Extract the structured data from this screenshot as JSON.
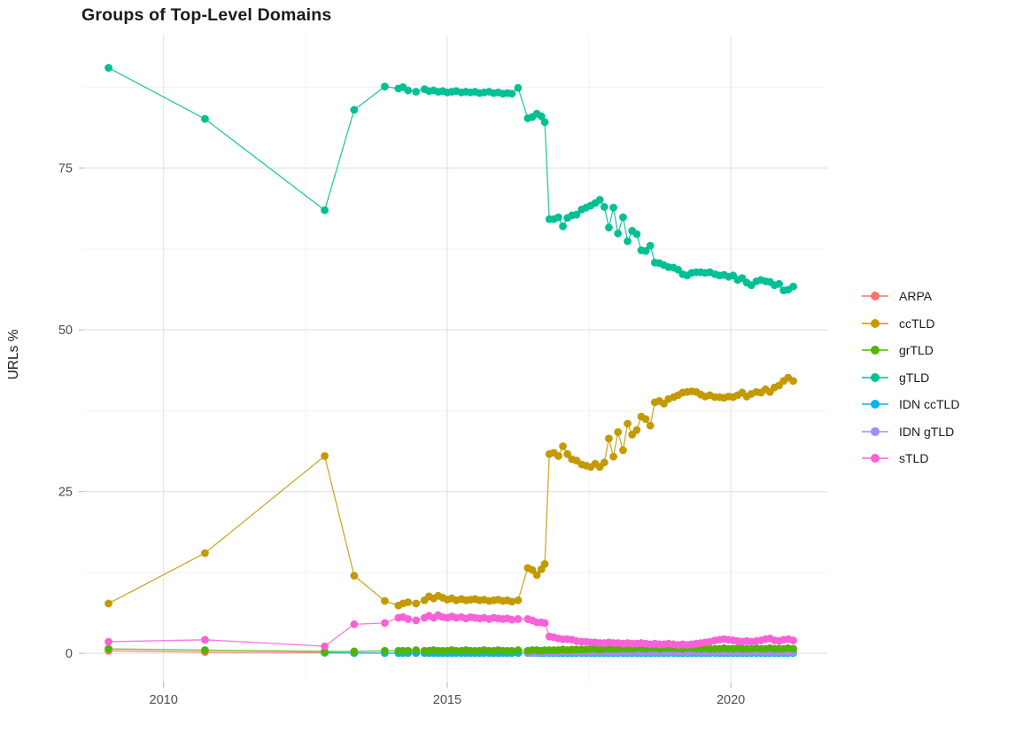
{
  "chart_data": {
    "type": "line",
    "marker": "point",
    "title": "Groups of Top-Level Domains",
    "xlabel": "",
    "ylabel": "URLs %",
    "grid": "on",
    "legend_position": "right",
    "x_axis": {
      "range": [
        2008.6,
        2021.7
      ],
      "ticks": [
        2010,
        2015,
        2020
      ],
      "tick_labels": [
        "2010",
        "2015",
        "2020"
      ],
      "minor_ticks": [
        2012.5,
        2017.5
      ]
    },
    "y_axis": {
      "range": [
        -4.5,
        95.5
      ],
      "ticks": [
        0,
        25,
        50,
        75
      ],
      "tick_labels": [
        "0",
        "25",
        "50",
        "75"
      ],
      "minor_ticks": [
        12.5,
        37.5,
        62.5,
        87.5
      ]
    },
    "x": [
      2009.03,
      2010.73,
      2012.84,
      2013.36,
      2013.9,
      2014.14,
      2014.22,
      2014.31,
      2014.45,
      2014.6,
      2014.68,
      2014.76,
      2014.84,
      2014.92,
      2015.0,
      2015.08,
      2015.16,
      2015.25,
      2015.33,
      2015.41,
      2015.49,
      2015.57,
      2015.65,
      2015.74,
      2015.82,
      2015.9,
      2015.98,
      2016.06,
      2016.14,
      2016.25,
      2016.42,
      2016.5,
      2016.58,
      2016.66,
      2016.72,
      2016.8,
      2016.88,
      2016.96,
      2017.04,
      2017.12,
      2017.2,
      2017.28,
      2017.37,
      2017.45,
      2017.53,
      2017.61,
      2017.69,
      2017.77,
      2017.85,
      2017.93,
      2018.01,
      2018.1,
      2018.18,
      2018.26,
      2018.34,
      2018.42,
      2018.5,
      2018.58,
      2018.66,
      2018.74,
      2018.82,
      2018.9,
      2018.99,
      2019.07,
      2019.15,
      2019.23,
      2019.31,
      2019.39,
      2019.47,
      2019.55,
      2019.63,
      2019.72,
      2019.8,
      2019.88,
      2019.96,
      2020.04,
      2020.12,
      2020.2,
      2020.28,
      2020.36,
      2020.45,
      2020.53,
      2020.61,
      2020.69,
      2020.77,
      2020.85,
      2020.93,
      2021.01,
      2021.1
    ],
    "series": [
      {
        "name": "ARPA",
        "color": "#F8766D",
        "values": [
          0.4,
          0.2,
          0.1,
          0.05,
          0.05,
          0.05,
          0.05,
          0.05,
          0.05,
          0.05,
          0.05,
          0.05,
          0.05,
          0.05,
          0.05,
          0.05,
          0.05,
          0.05,
          0.05,
          0.05,
          0.05,
          0.05,
          0.05,
          0.05,
          0.05,
          0.05,
          0.05,
          0.05,
          0.05,
          0.05,
          0.05,
          0.05,
          0.05,
          0.05,
          0.05,
          0.05,
          0.05,
          0.05,
          0.05,
          0.05,
          0.05,
          0.05,
          0.05,
          0.05,
          0.05,
          0.05,
          0.05,
          0.05,
          0.05,
          0.05,
          0.05,
          0.05,
          0.05,
          0.05,
          0.05,
          0.05,
          0.05,
          0.05,
          0.05,
          0.05,
          0.05,
          0.05,
          0.05,
          0.05,
          0.05,
          0.05,
          0.05,
          0.05,
          0.05,
          0.05,
          0.05,
          0.05,
          0.05,
          0.05,
          0.05,
          0.05,
          0.05,
          0.05,
          0.05,
          0.05,
          0.05,
          0.05,
          0.05,
          0.05,
          0.05,
          0.05,
          0.05,
          0.05,
          0.05
        ]
      },
      {
        "name": "ccTLD",
        "color": "#C49A00",
        "values": [
          7.7,
          15.5,
          30.5,
          12.0,
          8.1,
          7.4,
          7.7,
          7.9,
          7.7,
          8.2,
          8.8,
          8.5,
          8.9,
          8.6,
          8.3,
          8.5,
          8.2,
          8.4,
          8.2,
          8.3,
          8.4,
          8.2,
          8.3,
          8.1,
          8.2,
          8.3,
          8.1,
          8.2,
          8.0,
          8.2,
          13.2,
          12.9,
          12.1,
          13.0,
          13.8,
          30.8,
          31.0,
          30.5,
          32.0,
          30.8,
          30.0,
          29.8,
          29.2,
          29.0,
          28.8,
          29.3,
          28.8,
          29.5,
          33.2,
          30.4,
          34.2,
          31.4,
          35.5,
          33.8,
          34.5,
          36.6,
          36.2,
          35.2,
          38.8,
          39.0,
          38.6,
          39.3,
          39.6,
          39.9,
          40.3,
          40.4,
          40.5,
          40.4,
          40.0,
          39.7,
          39.9,
          39.6,
          39.6,
          39.5,
          39.7,
          39.6,
          39.9,
          40.3,
          39.7,
          40.1,
          40.4,
          40.3,
          40.8,
          40.4,
          41.1,
          41.4,
          42.1,
          42.6,
          42.1
        ]
      },
      {
        "name": "grTLD",
        "color": "#53B400",
        "values": [
          0.7,
          0.5,
          0.3,
          0.3,
          0.4,
          0.4,
          0.4,
          0.4,
          0.5,
          0.4,
          0.4,
          0.5,
          0.4,
          0.4,
          0.4,
          0.5,
          0.4,
          0.4,
          0.5,
          0.4,
          0.4,
          0.4,
          0.5,
          0.4,
          0.4,
          0.5,
          0.4,
          0.4,
          0.4,
          0.5,
          0.4,
          0.5,
          0.5,
          0.4,
          0.5,
          0.5,
          0.5,
          0.5,
          0.6,
          0.5,
          0.6,
          0.6,
          0.6,
          0.6,
          0.7,
          0.7,
          0.6,
          0.7,
          0.7,
          0.7,
          0.7,
          0.8,
          0.7,
          0.7,
          0.8,
          0.8,
          0.7,
          0.8,
          0.8,
          0.7,
          0.8,
          0.8,
          0.8,
          0.8,
          0.7,
          0.8,
          0.8,
          0.7,
          0.7,
          0.8,
          0.7,
          0.7,
          0.7,
          0.8,
          0.7,
          0.7,
          0.8,
          0.7,
          0.7,
          0.7,
          0.8,
          0.7,
          0.7,
          0.8,
          0.7,
          0.7,
          0.7,
          0.8,
          0.7
        ]
      },
      {
        "name": "gTLD",
        "color": "#00C094",
        "values": [
          90.5,
          82.6,
          68.5,
          84.0,
          87.6,
          87.3,
          87.5,
          87.0,
          86.8,
          87.2,
          86.9,
          87.0,
          86.8,
          86.9,
          86.7,
          86.8,
          86.9,
          86.7,
          86.8,
          86.7,
          86.8,
          86.6,
          86.7,
          86.8,
          86.6,
          86.7,
          86.5,
          86.6,
          86.5,
          87.4,
          82.7,
          82.9,
          83.4,
          83.0,
          82.1,
          67.1,
          67.1,
          67.4,
          66.0,
          67.3,
          67.7,
          67.8,
          68.6,
          68.9,
          69.2,
          69.6,
          70.1,
          69.0,
          65.8,
          68.9,
          64.9,
          67.4,
          63.7,
          65.3,
          64.8,
          62.3,
          62.2,
          63.0,
          60.4,
          60.3,
          60.0,
          59.7,
          59.6,
          59.3,
          58.6,
          58.4,
          58.8,
          58.9,
          58.9,
          58.8,
          58.9,
          58.6,
          58.4,
          58.5,
          58.2,
          58.4,
          57.7,
          58.0,
          57.3,
          56.9,
          57.5,
          57.7,
          57.5,
          57.4,
          56.9,
          57.1,
          56.1,
          56.2,
          56.7
        ]
      },
      {
        "name": "IDN ccTLD",
        "color": "#00B6EB",
        "values": [
          null,
          null,
          0.1,
          0.05,
          0.05,
          0.05,
          0.05,
          0.05,
          0.05,
          0.05,
          0.05,
          0.05,
          0.05,
          0.05,
          0.05,
          0.05,
          0.05,
          0.05,
          0.05,
          0.05,
          0.05,
          0.05,
          0.05,
          0.05,
          0.05,
          0.05,
          0.05,
          0.05,
          0.05,
          0.05,
          0.05,
          0.05,
          0.05,
          0.05,
          0.05,
          0.05,
          0.05,
          0.05,
          0.05,
          0.05,
          0.05,
          0.05,
          0.05,
          0.05,
          0.05,
          0.05,
          0.05,
          0.05,
          0.05,
          0.05,
          0.05,
          0.05,
          0.05,
          0.05,
          0.05,
          0.05,
          0.05,
          0.05,
          0.05,
          0.05,
          0.05,
          0.05,
          0.05,
          0.05,
          0.05,
          0.05,
          0.05,
          0.05,
          0.05,
          0.05,
          0.05,
          0.05,
          0.05,
          0.05,
          0.05,
          0.05,
          0.05,
          0.05,
          0.05,
          0.05,
          0.05,
          0.05,
          0.05,
          0.05,
          0.05,
          0.05,
          0.05,
          0.05,
          0.05
        ]
      },
      {
        "name": "IDN gTLD",
        "color": "#A58AFF",
        "values": [
          null,
          null,
          null,
          null,
          null,
          null,
          null,
          null,
          null,
          null,
          null,
          null,
          null,
          null,
          null,
          null,
          null,
          null,
          null,
          null,
          null,
          null,
          null,
          null,
          null,
          null,
          null,
          null,
          null,
          null,
          0.1,
          0.1,
          0.1,
          0.15,
          0.15,
          0.15,
          0.15,
          0.2,
          0.2,
          0.2,
          0.2,
          0.2,
          0.2,
          0.2,
          0.2,
          0.2,
          0.2,
          0.2,
          0.2,
          0.2,
          0.2,
          0.2,
          0.2,
          0.2,
          0.2,
          0.2,
          0.2,
          0.2,
          0.2,
          0.2,
          0.2,
          0.2,
          0.2,
          0.2,
          0.2,
          0.2,
          0.2,
          0.2,
          0.2,
          0.2,
          0.2,
          0.2,
          0.2,
          0.2,
          0.2,
          0.2,
          0.2,
          0.2,
          0.2,
          0.2,
          0.2,
          0.2,
          0.2,
          0.2,
          0.2,
          0.2,
          0.2,
          0.2,
          0.2
        ]
      },
      {
        "name": "sTLD",
        "color": "#FB61D7",
        "values": [
          1.8,
          2.1,
          1.1,
          4.5,
          4.7,
          5.5,
          5.6,
          5.3,
          5.1,
          5.5,
          5.8,
          5.5,
          5.9,
          5.6,
          5.5,
          5.7,
          5.5,
          5.6,
          5.4,
          5.6,
          5.5,
          5.4,
          5.5,
          5.3,
          5.5,
          5.4,
          5.3,
          5.4,
          5.2,
          5.3,
          5.3,
          5.1,
          4.8,
          4.8,
          4.7,
          2.6,
          2.5,
          2.3,
          2.2,
          2.2,
          2.1,
          1.9,
          1.8,
          1.8,
          1.7,
          1.7,
          1.6,
          1.6,
          1.7,
          1.6,
          1.6,
          1.5,
          1.6,
          1.5,
          1.5,
          1.6,
          1.5,
          1.4,
          1.5,
          1.4,
          1.4,
          1.5,
          1.4,
          1.3,
          1.4,
          1.3,
          1.4,
          1.5,
          1.6,
          1.7,
          1.8,
          2.0,
          2.1,
          2.2,
          2.1,
          2.0,
          1.9,
          1.8,
          1.9,
          1.8,
          1.9,
          2.0,
          2.2,
          2.3,
          2.0,
          1.9,
          2.1,
          2.2,
          2.0
        ]
      }
    ],
    "z_order": [
      "ARPA",
      "IDN ccTLD",
      "IDN gTLD",
      "ccTLD",
      "grTLD",
      "gTLD",
      "sTLD"
    ],
    "style": {
      "major_grid_color": "#E4E4E4",
      "minor_grid_color": "#F2F2F2",
      "tick_mark_color": "#C9C9C9",
      "tick_label_color": "#4d4d4d",
      "point_radius": 4.4,
      "line_width": 1.3
    }
  }
}
